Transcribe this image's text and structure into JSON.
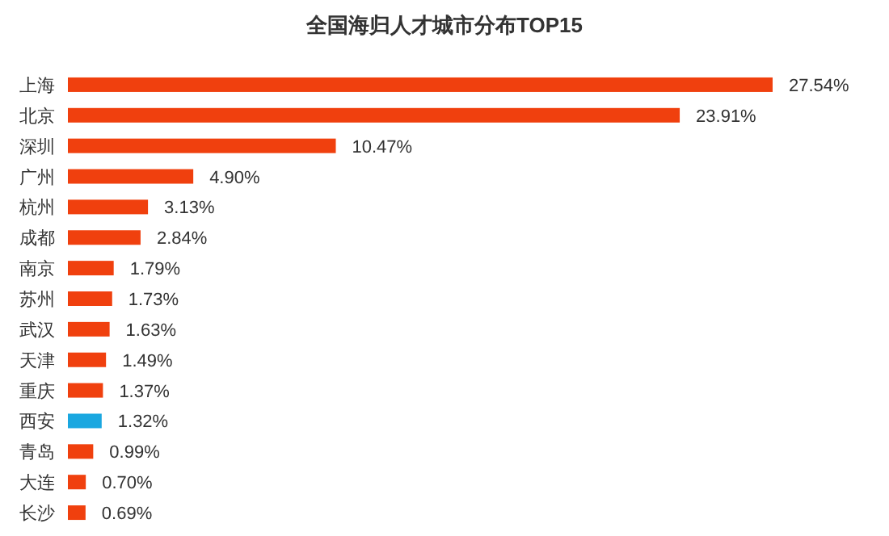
{
  "chart_data": {
    "type": "bar",
    "orientation": "horizontal",
    "title": "全国海归人才城市分布TOP15",
    "categories": [
      "上海",
      "北京",
      "深圳",
      "广州",
      "杭州",
      "成都",
      "南京",
      "苏州",
      "武汉",
      "天津",
      "重庆",
      "西安",
      "青岛",
      "大连",
      "长沙"
    ],
    "values": [
      27.54,
      23.91,
      10.47,
      4.9,
      3.13,
      2.84,
      1.79,
      1.73,
      1.63,
      1.49,
      1.37,
      1.32,
      0.99,
      0.7,
      0.69
    ],
    "value_labels": [
      "27.54%",
      "23.91%",
      "10.47%",
      "4.90%",
      "3.13%",
      "2.84%",
      "1.79%",
      "1.73%",
      "1.63%",
      "1.49%",
      "1.37%",
      "1.32%",
      "0.99%",
      "0.70%",
      "0.69%"
    ],
    "colors": [
      "#f0400e",
      "#f0400e",
      "#f0400e",
      "#f0400e",
      "#f0400e",
      "#f0400e",
      "#f0400e",
      "#f0400e",
      "#f0400e",
      "#f0400e",
      "#f0400e",
      "#1aa7e0",
      "#f0400e",
      "#f0400e",
      "#f0400e"
    ]
  }
}
